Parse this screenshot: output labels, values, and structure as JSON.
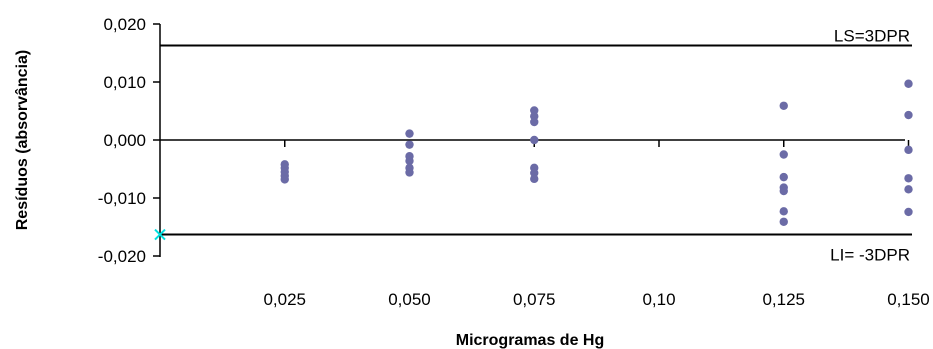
{
  "chart_data": {
    "type": "scatter",
    "xlabel": "Microgramas de Hg",
    "ylabel": "Resíduos (absorvância)",
    "ylim": [
      -0.02,
      0.02
    ],
    "y_ticks": [
      0.02,
      0.01,
      0.0,
      -0.01,
      -0.02
    ],
    "y_tick_labels": [
      "0,020",
      "0,010",
      "0,000",
      "-0,010",
      "-0,020"
    ],
    "x_ticks": [
      0.025,
      0.05,
      0.075,
      0.1,
      0.125,
      0.15
    ],
    "x_tick_labels": [
      "0,025",
      "0,050",
      "0,075",
      "0,10",
      "0,125",
      "0,150"
    ],
    "grid": false,
    "limits": [
      {
        "label": "LS=3DPR",
        "y": 0.0163
      },
      {
        "label": "LI= -3DPR",
        "y": -0.0163
      }
    ],
    "limit_marker": {
      "x": 0.0,
      "y": -0.0163,
      "symbol": "x",
      "color": "#00e0e0"
    },
    "series": [
      {
        "color": "#6b6ba6",
        "points": [
          {
            "x": 0.025,
            "y": -0.0042
          },
          {
            "x": 0.025,
            "y": -0.0048
          },
          {
            "x": 0.025,
            "y": -0.0055
          },
          {
            "x": 0.025,
            "y": -0.0062
          },
          {
            "x": 0.025,
            "y": -0.0068
          },
          {
            "x": 0.05,
            "y": 0.0011
          },
          {
            "x": 0.05,
            "y": -0.0008
          },
          {
            "x": 0.05,
            "y": -0.0028
          },
          {
            "x": 0.05,
            "y": -0.0036
          },
          {
            "x": 0.05,
            "y": -0.0048
          },
          {
            "x": 0.05,
            "y": -0.0056
          },
          {
            "x": 0.075,
            "y": 0.0051
          },
          {
            "x": 0.075,
            "y": 0.0041
          },
          {
            "x": 0.075,
            "y": 0.0031
          },
          {
            "x": 0.075,
            "y": 0.0
          },
          {
            "x": 0.075,
            "y": -0.0048
          },
          {
            "x": 0.075,
            "y": -0.0057
          },
          {
            "x": 0.075,
            "y": -0.0067
          },
          {
            "x": 0.125,
            "y": 0.0059
          },
          {
            "x": 0.125,
            "y": -0.0025
          },
          {
            "x": 0.125,
            "y": -0.0064
          },
          {
            "x": 0.125,
            "y": -0.0082
          },
          {
            "x": 0.125,
            "y": -0.0088
          },
          {
            "x": 0.125,
            "y": -0.0123
          },
          {
            "x": 0.125,
            "y": -0.0141
          },
          {
            "x": 0.15,
            "y": 0.0097
          },
          {
            "x": 0.15,
            "y": 0.0043
          },
          {
            "x": 0.15,
            "y": -0.0017
          },
          {
            "x": 0.15,
            "y": -0.0066
          },
          {
            "x": 0.15,
            "y": -0.0085
          },
          {
            "x": 0.15,
            "y": -0.0124
          }
        ]
      }
    ]
  }
}
